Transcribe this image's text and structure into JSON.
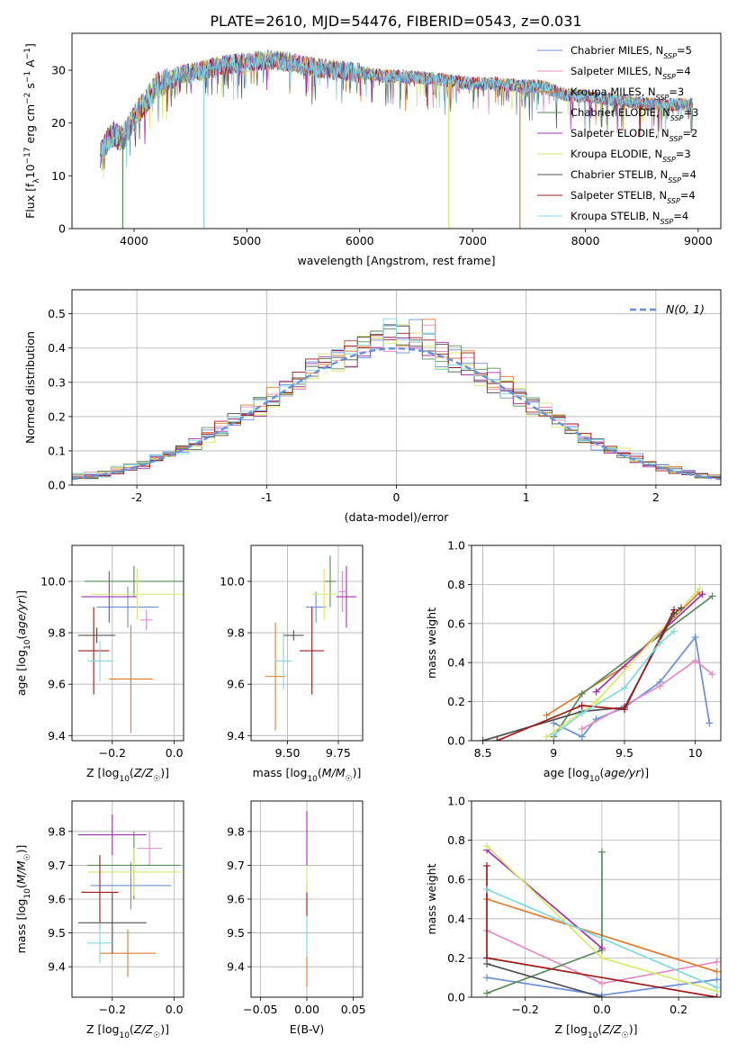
{
  "title": "PLATE=2610, MJD=54476, FIBERID=0543, z=0.031",
  "colors": {
    "Chabrier MILES": "#6a8fd8",
    "Salpeter MILES": "#e68bc4",
    "Kroupa MILES": "#e07b2a",
    "Chabrier ELODIE": "#5a8a5a",
    "Salpeter ELODIE": "#a030b0",
    "Kroupa ELODIE": "#d8e868",
    "Chabrier STELIB": "#505050",
    "Salpeter STELIB": "#a01818",
    "Kroupa STELIB": "#80d8e0"
  },
  "chart_data": [
    {
      "id": "spectrum",
      "type": "line",
      "xlabel": "wavelength [Angstrom, rest frame]",
      "ylabel": "Flux [f_λ 10^-17 erg cm^-2 s^-1 A^-1]",
      "xlim": [
        3450,
        9200
      ],
      "ylim": [
        0,
        37
      ],
      "xticks": [
        4000,
        5000,
        6000,
        7000,
        8000,
        9000
      ],
      "yticks": [
        0,
        10,
        20,
        30
      ],
      "grid": false,
      "legend": "top-right",
      "series": [
        {
          "name": "Chabrier MILES",
          "nssp": "5"
        },
        {
          "name": "Salpeter MILES",
          "nssp": "4"
        },
        {
          "name": "Kroupa MILES",
          "nssp": "3"
        },
        {
          "name": "Chabrier ELODIE",
          "nssp": "3"
        },
        {
          "name": "Salpeter ELODIE",
          "nssp": "2"
        },
        {
          "name": "Kroupa ELODIE",
          "nssp": "3"
        },
        {
          "name": "Chabrier STELIB",
          "nssp": "4"
        },
        {
          "name": "Salpeter STELIB",
          "nssp": "4"
        },
        {
          "name": "Kroupa STELIB",
          "nssp": "4"
        }
      ],
      "continuum": {
        "x": [
          3700,
          3800,
          3900,
          4000,
          4100,
          4200,
          4400,
          4600,
          4800,
          5000,
          5200,
          5400,
          5600,
          5800,
          6000,
          6200,
          6400,
          6600,
          6800,
          7000,
          7200,
          7400,
          7600,
          7800,
          8000,
          8200,
          8400,
          8600,
          8800,
          8950
        ],
        "y": [
          14,
          18,
          17,
          21,
          24,
          27,
          29,
          30,
          31,
          31.5,
          32,
          31.5,
          30.5,
          30,
          29.5,
          29,
          28.8,
          28.5,
          28,
          27.5,
          27.5,
          27,
          27,
          25.5,
          25,
          24.5,
          24,
          23.5,
          23.5,
          23.5
        ]
      },
      "dropouts": [
        {
          "series": "Chabrier ELODIE",
          "x": 3900
        },
        {
          "series": "Kroupa STELIB",
          "x": 4620
        },
        {
          "series": "Kroupa ELODIE",
          "x": 6790
        },
        {
          "series": "Kroupa MILES",
          "x": 7420
        }
      ]
    },
    {
      "id": "residuals",
      "type": "bar",
      "xlabel": "(data-model)/error",
      "ylabel": "Normed distribution",
      "xlim": [
        -2.5,
        2.5
      ],
      "ylim": [
        0,
        0.57
      ],
      "xticks": [
        -2,
        -1,
        0,
        1,
        2
      ],
      "yticks": [
        0.0,
        0.1,
        0.2,
        0.3,
        0.4,
        0.5
      ],
      "grid": true,
      "legend": "top-right",
      "normal_label": "N(0, 1)",
      "bin_width": 0.1,
      "bin_start": -2.5
    },
    {
      "id": "age-vs-Z",
      "type": "scatter",
      "xlabel": "Z [log10(Z/Z☉)]",
      "ylabel": "age [log10(age/yr)]",
      "xlim": [
        -0.33,
        0.03
      ],
      "ylim": [
        9.38,
        10.14
      ],
      "xticks": [
        -0.2,
        0.0
      ],
      "xtick_labels": [
        "−0.2",
        "0.0"
      ],
      "yticks": [
        9.4,
        9.6,
        9.8,
        10.0
      ],
      "grid": true,
      "points": [
        {
          "series": "Chabrier MILES",
          "x": -0.15,
          "xerr": 0.1,
          "y": 9.9,
          "yerr": 0.08
        },
        {
          "series": "Salpeter MILES",
          "x": -0.09,
          "xerr": 0.02,
          "y": 9.85,
          "yerr": 0.04
        },
        {
          "series": "Kroupa MILES",
          "x": -0.14,
          "xerr": 0.07,
          "y": 9.62,
          "yerr": 0.21
        },
        {
          "series": "Chabrier ELODIE",
          "x": -0.13,
          "xerr": 0.16,
          "y": 10.0,
          "yerr": 0.06
        },
        {
          "series": "Salpeter ELODIE",
          "x": -0.21,
          "xerr": 0.09,
          "y": 9.94,
          "yerr": 0.1
        },
        {
          "series": "Kroupa ELODIE",
          "x": -0.12,
          "xerr": 0.15,
          "y": 9.95,
          "yerr": 0.1
        },
        {
          "series": "Chabrier STELIB",
          "x": -0.25,
          "xerr": 0.06,
          "y": 9.79,
          "yerr": 0.03
        },
        {
          "series": "Salpeter STELIB",
          "x": -0.26,
          "xerr": 0.05,
          "y": 9.73,
          "yerr": 0.17
        },
        {
          "series": "Kroupa STELIB",
          "x": -0.24,
          "xerr": 0.04,
          "y": 9.69,
          "yerr": 0.08
        }
      ]
    },
    {
      "id": "age-vs-mass",
      "type": "scatter",
      "xlabel": "mass [log10(M/M☉)]",
      "ylabel": "",
      "xlim": [
        9.32,
        9.87
      ],
      "ylim": [
        9.38,
        10.14
      ],
      "xticks": [
        9.5,
        9.75
      ],
      "xtick_labels": [
        "9.50",
        "9.75"
      ],
      "yticks": [
        9.4,
        9.6,
        9.8,
        10.0
      ],
      "grid": true,
      "points": [
        {
          "series": "Chabrier MILES",
          "x": 9.64,
          "xerr": 0.05,
          "y": 9.9,
          "yerr": 0.06
        },
        {
          "series": "Salpeter MILES",
          "x": 9.77,
          "xerr": 0.02,
          "y": 9.96,
          "yerr": 0.08
        },
        {
          "series": "Kroupa MILES",
          "x": 9.44,
          "xerr": 0.05,
          "y": 9.63,
          "yerr": 0.21
        },
        {
          "series": "Chabrier ELODIE",
          "x": 9.71,
          "xerr": 0.03,
          "y": 10.0,
          "yerr": 0.1
        },
        {
          "series": "Salpeter ELODIE",
          "x": 9.79,
          "xerr": 0.05,
          "y": 9.94,
          "yerr": 0.12
        },
        {
          "series": "Kroupa ELODIE",
          "x": 9.68,
          "xerr": 0.06,
          "y": 9.95,
          "yerr": 0.1
        },
        {
          "series": "Chabrier STELIB",
          "x": 9.53,
          "xerr": 0.05,
          "y": 9.79,
          "yerr": 0.02
        },
        {
          "series": "Salpeter STELIB",
          "x": 9.62,
          "xerr": 0.06,
          "y": 9.73,
          "yerr": 0.17
        },
        {
          "series": "Kroupa STELIB",
          "x": 9.48,
          "xerr": 0.04,
          "y": 9.69,
          "yerr": 0.11
        }
      ]
    },
    {
      "id": "weights-vs-age",
      "type": "line",
      "xlabel": "age [log10(age/yr)]",
      "ylabel": "mass weight",
      "xlim": [
        8.42,
        10.18
      ],
      "ylim": [
        0,
        1
      ],
      "xticks": [
        8.5,
        9.0,
        9.5,
        10.0
      ],
      "yticks": [
        0.0,
        0.2,
        0.4,
        0.6,
        0.8,
        1.0
      ],
      "grid": true,
      "series": [
        {
          "name": "Chabrier MILES",
          "x": [
            9.0,
            9.2,
            9.3,
            9.5,
            9.75,
            10.0,
            10.1
          ],
          "y": [
            0.09,
            0.02,
            0.11,
            0.17,
            0.3,
            0.53,
            0.09
          ]
        },
        {
          "name": "Salpeter MILES",
          "x": [
            9.2,
            9.5,
            9.75,
            10.0,
            10.12
          ],
          "y": [
            0.06,
            0.18,
            0.28,
            0.41,
            0.34
          ]
        },
        {
          "name": "Kroupa MILES",
          "x": [
            8.95,
            9.5,
            10.03
          ],
          "y": [
            0.13,
            0.38,
            0.76
          ]
        },
        {
          "name": "Chabrier ELODIE",
          "x": [
            9.0,
            9.2,
            10.12
          ],
          "y": [
            0.02,
            0.24,
            0.74
          ]
        },
        {
          "name": "Salpeter ELODIE",
          "x": [
            9.3,
            10.05
          ],
          "y": [
            0.25,
            0.75
          ]
        },
        {
          "name": "Kroupa ELODIE",
          "x": [
            8.95,
            9.3,
            10.03
          ],
          "y": [
            0.02,
            0.2,
            0.78
          ]
        },
        {
          "name": "Chabrier STELIB",
          "x": [
            8.5,
            9.2,
            9.5,
            9.85,
            9.9
          ],
          "y": [
            0.0,
            0.15,
            0.17,
            0.65,
            0.68
          ]
        },
        {
          "name": "Salpeter STELIB",
          "x": [
            8.6,
            9.2,
            9.5,
            9.85
          ],
          "y": [
            0.0,
            0.18,
            0.16,
            0.67
          ]
        },
        {
          "name": "Kroupa STELIB",
          "x": [
            9.0,
            9.2,
            9.5,
            9.75,
            9.85
          ],
          "y": [
            0.03,
            0.14,
            0.27,
            0.5,
            0.56
          ]
        }
      ]
    },
    {
      "id": "mass-vs-Z",
      "type": "scatter",
      "xlabel": "Z [log10(Z/Z☉)]",
      "ylabel": "mass [log10(M/M☉)]",
      "xlim": [
        -0.33,
        0.03
      ],
      "ylim": [
        9.31,
        9.89
      ],
      "xticks": [
        -0.2,
        0.0
      ],
      "xtick_labels": [
        "−0.2",
        "0.0"
      ],
      "yticks": [
        9.4,
        9.5,
        9.6,
        9.7,
        9.8
      ],
      "grid": true,
      "points": [
        {
          "series": "Chabrier MILES",
          "x": -0.14,
          "xerr": 0.13,
          "y": 9.64,
          "yerr": 0.07
        },
        {
          "series": "Salpeter MILES",
          "x": -0.08,
          "xerr": 0.04,
          "y": 9.75,
          "yerr": 0.05
        },
        {
          "series": "Kroupa MILES",
          "x": -0.15,
          "xerr": 0.09,
          "y": 9.44,
          "yerr": 0.07
        },
        {
          "series": "Chabrier ELODIE",
          "x": -0.13,
          "xerr": 0.15,
          "y": 9.7,
          "yerr": 0.1
        },
        {
          "series": "Salpeter ELODIE",
          "x": -0.2,
          "xerr": 0.11,
          "y": 9.79,
          "yerr": 0.06
        },
        {
          "series": "Kroupa ELODIE",
          "x": -0.13,
          "xerr": 0.15,
          "y": 9.68,
          "yerr": 0.07
        },
        {
          "series": "Chabrier STELIB",
          "x": -0.2,
          "xerr": 0.11,
          "y": 9.53,
          "yerr": 0.09
        },
        {
          "series": "Salpeter STELIB",
          "x": -0.24,
          "xerr": 0.06,
          "y": 9.62,
          "yerr": 0.11
        },
        {
          "series": "Kroupa STELIB",
          "x": -0.24,
          "xerr": 0.04,
          "y": 9.47,
          "yerr": 0.06
        }
      ]
    },
    {
      "id": "mass-vs-EBV",
      "type": "scatter",
      "xlabel": "E(B-V)",
      "ylabel": "",
      "xlim": [
        -0.06,
        0.06
      ],
      "ylim": [
        9.31,
        9.89
      ],
      "xticks": [
        -0.05,
        0.0,
        0.05
      ],
      "xtick_labels": [
        "−0.05",
        "0.00",
        "0.05"
      ],
      "yticks": [
        9.4,
        9.5,
        9.6,
        9.7,
        9.8
      ],
      "grid": true,
      "points": [
        {
          "series": "Kroupa MILES",
          "x": 0.0,
          "y": 9.44,
          "yerr": 0.1
        },
        {
          "series": "Kroupa STELIB",
          "x": 0.0,
          "y": 9.49,
          "yerr": 0.06
        },
        {
          "series": "Salpeter STELIB",
          "x": 0.0,
          "y": 9.6,
          "yerr": 0.05
        },
        {
          "series": "Kroupa ELODIE",
          "x": 0.0,
          "y": 9.67,
          "yerr": 0.05
        },
        {
          "series": "Salpeter ELODIE",
          "x": 0.0,
          "y": 9.78,
          "yerr": 0.08
        }
      ]
    },
    {
      "id": "weights-vs-Z",
      "type": "line",
      "xlabel": "Z [log10(Z/Z☉)]",
      "ylabel": "mass weight",
      "xlim": [
        -0.34,
        0.31
      ],
      "ylim": [
        0,
        1
      ],
      "xticks": [
        -0.2,
        0.0,
        0.2
      ],
      "xtick_labels": [
        "−0.2",
        "0.0",
        "0.2"
      ],
      "yticks": [
        0.0,
        0.2,
        0.4,
        0.6,
        0.8,
        1.0
      ],
      "grid": true,
      "series": [
        {
          "name": "Chabrier MILES",
          "x": [
            -0.3,
            0.0,
            0.3
          ],
          "y": [
            0.1,
            0.01,
            0.09
          ]
        },
        {
          "name": "Salpeter MILES",
          "x": [
            -0.3,
            0.0,
            0.3
          ],
          "y": [
            0.34,
            0.07,
            0.18
          ]
        },
        {
          "name": "Kroupa MILES",
          "x": [
            -0.3,
            0.3
          ],
          "y": [
            0.5,
            0.13
          ]
        },
        {
          "name": "Chabrier ELODIE",
          "x": [
            -0.3,
            0.0,
            0.0
          ],
          "y": [
            0.02,
            0.24,
            0.74
          ]
        },
        {
          "name": "Salpeter ELODIE",
          "x": [
            -0.3,
            0.0
          ],
          "y": [
            0.75,
            0.25
          ]
        },
        {
          "name": "Kroupa ELODIE",
          "x": [
            -0.3,
            0.0,
            0.3
          ],
          "y": [
            0.77,
            0.2,
            0.03
          ]
        },
        {
          "name": "Chabrier STELIB",
          "x": [
            -0.3,
            0.0
          ],
          "y": [
            0.17,
            0.0
          ]
        },
        {
          "name": "Salpeter STELIB",
          "x": [
            -0.3,
            -0.3,
            0.3
          ],
          "y": [
            0.67,
            0.2,
            0.0
          ]
        },
        {
          "name": "Kroupa STELIB",
          "x": [
            -0.3,
            0.3
          ],
          "y": [
            0.55,
            0.05
          ]
        }
      ]
    }
  ]
}
